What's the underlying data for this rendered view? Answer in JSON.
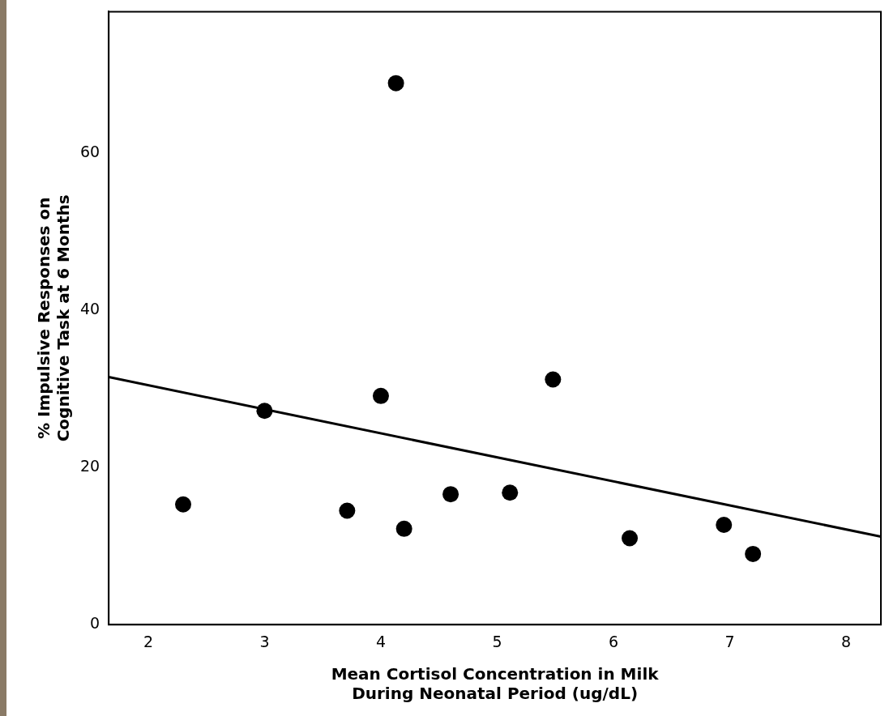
{
  "chart_data": {
    "type": "scatter",
    "xlabel": "Mean Cortisol Concentration in Milk\nDuring Neonatal Period (ug/dL)",
    "ylabel": "% Impulsive Responses on\nCognitive Task at 6 Months",
    "x": [
      2.3,
      3.0,
      3.71,
      4.0,
      4.13,
      4.2,
      4.6,
      5.11,
      5.48,
      6.14,
      6.95,
      7.2
    ],
    "series": [
      {
        "color": "#000000",
        "values": [
          15.3,
          27.2,
          14.5,
          29.1,
          68.9,
          12.2,
          16.6,
          16.8,
          31.2,
          11.0,
          12.7,
          9.0
        ]
      },
      {
        "type": "line",
        "marker": "none",
        "color": "#000000",
        "x": [
          1.66,
          8.3
        ],
        "values": [
          31.5,
          11.2
        ]
      }
    ],
    "xlim": [
      1.66,
      8.3
    ],
    "xticks": [
      2,
      3,
      4,
      5,
      6,
      7,
      8
    ],
    "ylim": [
      0,
      78
    ],
    "yticks": [
      0,
      20,
      40,
      60
    ],
    "grid": false,
    "legend": false,
    "marker": "circle"
  }
}
